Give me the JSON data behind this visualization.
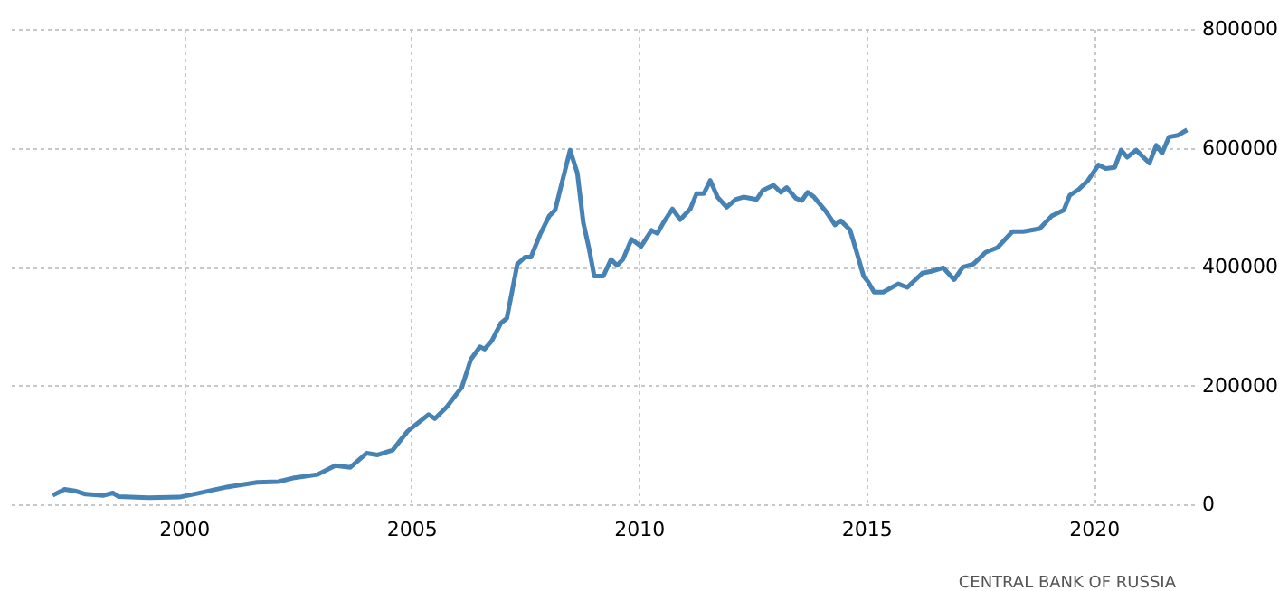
{
  "chart_data": {
    "type": "line",
    "annotations": [
      "CENTRAL BANK OF RUSSIA"
    ],
    "xlim": [
      1996.2,
      2022.2
    ],
    "xticks": [
      2000,
      2005,
      2010,
      2015,
      2020
    ],
    "ylim": [
      0,
      800000
    ],
    "yticks": [
      0,
      200000,
      400000,
      600000,
      800000
    ],
    "grid": true,
    "line_style": "solid",
    "marker": "none",
    "series": [
      {
        "color": "#4682b4",
        "x": [
          1997.12,
          1997.38,
          1997.64,
          1997.84,
          1998.24,
          1998.44,
          1998.57,
          1999.23,
          1999.9,
          2000.29,
          2000.95,
          2001.61,
          2002.08,
          2002.4,
          2002.94,
          2003.33,
          2003.66,
          2004.02,
          2004.26,
          2004.59,
          2004.92,
          2005.38,
          2005.52,
          2005.78,
          2006.11,
          2006.31,
          2006.51,
          2006.61,
          2006.77,
          2006.97,
          2007.1,
          2007.33,
          2007.5,
          2007.63,
          2007.83,
          2008.03,
          2008.16,
          2008.29,
          2008.49,
          2008.65,
          2008.78,
          2008.91,
          2009.02,
          2009.22,
          2009.39,
          2009.52,
          2009.65,
          2009.84,
          2010.05,
          2010.28,
          2010.41,
          2010.54,
          2010.74,
          2010.91,
          2011.13,
          2011.27,
          2011.43,
          2011.57,
          2011.73,
          2011.93,
          2012.13,
          2012.3,
          2012.59,
          2012.72,
          2012.96,
          2013.12,
          2013.25,
          2013.45,
          2013.58,
          2013.71,
          2013.85,
          2014.11,
          2014.31,
          2014.44,
          2014.64,
          2014.77,
          2014.94,
          2015.04,
          2015.17,
          2015.37,
          2015.7,
          2015.9,
          2016.23,
          2016.43,
          2016.69,
          2016.93,
          2017.12,
          2017.35,
          2017.62,
          2017.88,
          2018.21,
          2018.45,
          2018.81,
          2019.07,
          2019.34,
          2019.47,
          2019.67,
          2019.87,
          2020.1,
          2020.26,
          2020.46,
          2020.6,
          2020.73,
          2020.93,
          2021.22,
          2021.37,
          2021.5,
          2021.65,
          2021.85,
          2022.05
        ],
        "values": [
          15000,
          25000,
          22000,
          17000,
          15000,
          19000,
          13000,
          11000,
          12000,
          18000,
          29000,
          37000,
          38000,
          44000,
          50000,
          65000,
          62000,
          86000,
          83000,
          91000,
          123000,
          151000,
          144000,
          164000,
          197000,
          244000,
          265000,
          261000,
          275000,
          305000,
          313000,
          404000,
          416000,
          416000,
          454000,
          485000,
          495000,
          535000,
          596000,
          557000,
          474000,
          429000,
          384000,
          384000,
          412000,
          402000,
          412000,
          446000,
          434000,
          461000,
          456000,
          474000,
          497000,
          479000,
          497000,
          523000,
          523000,
          545000,
          517000,
          500000,
          513000,
          517000,
          513000,
          528000,
          537000,
          525000,
          533000,
          515000,
          511000,
          525000,
          517000,
          493000,
          470000,
          477000,
          462000,
          429000,
          384000,
          374000,
          357000,
          357000,
          371000,
          365000,
          389000,
          392000,
          398000,
          378000,
          399000,
          404000,
          424000,
          432000,
          459000,
          459000,
          464000,
          485000,
          495000,
          520000,
          530000,
          545000,
          571000,
          565000,
          567000,
          596000,
          584000,
          596000,
          574000,
          604000,
          591000,
          618000,
          621000,
          630000
        ]
      }
    ]
  }
}
